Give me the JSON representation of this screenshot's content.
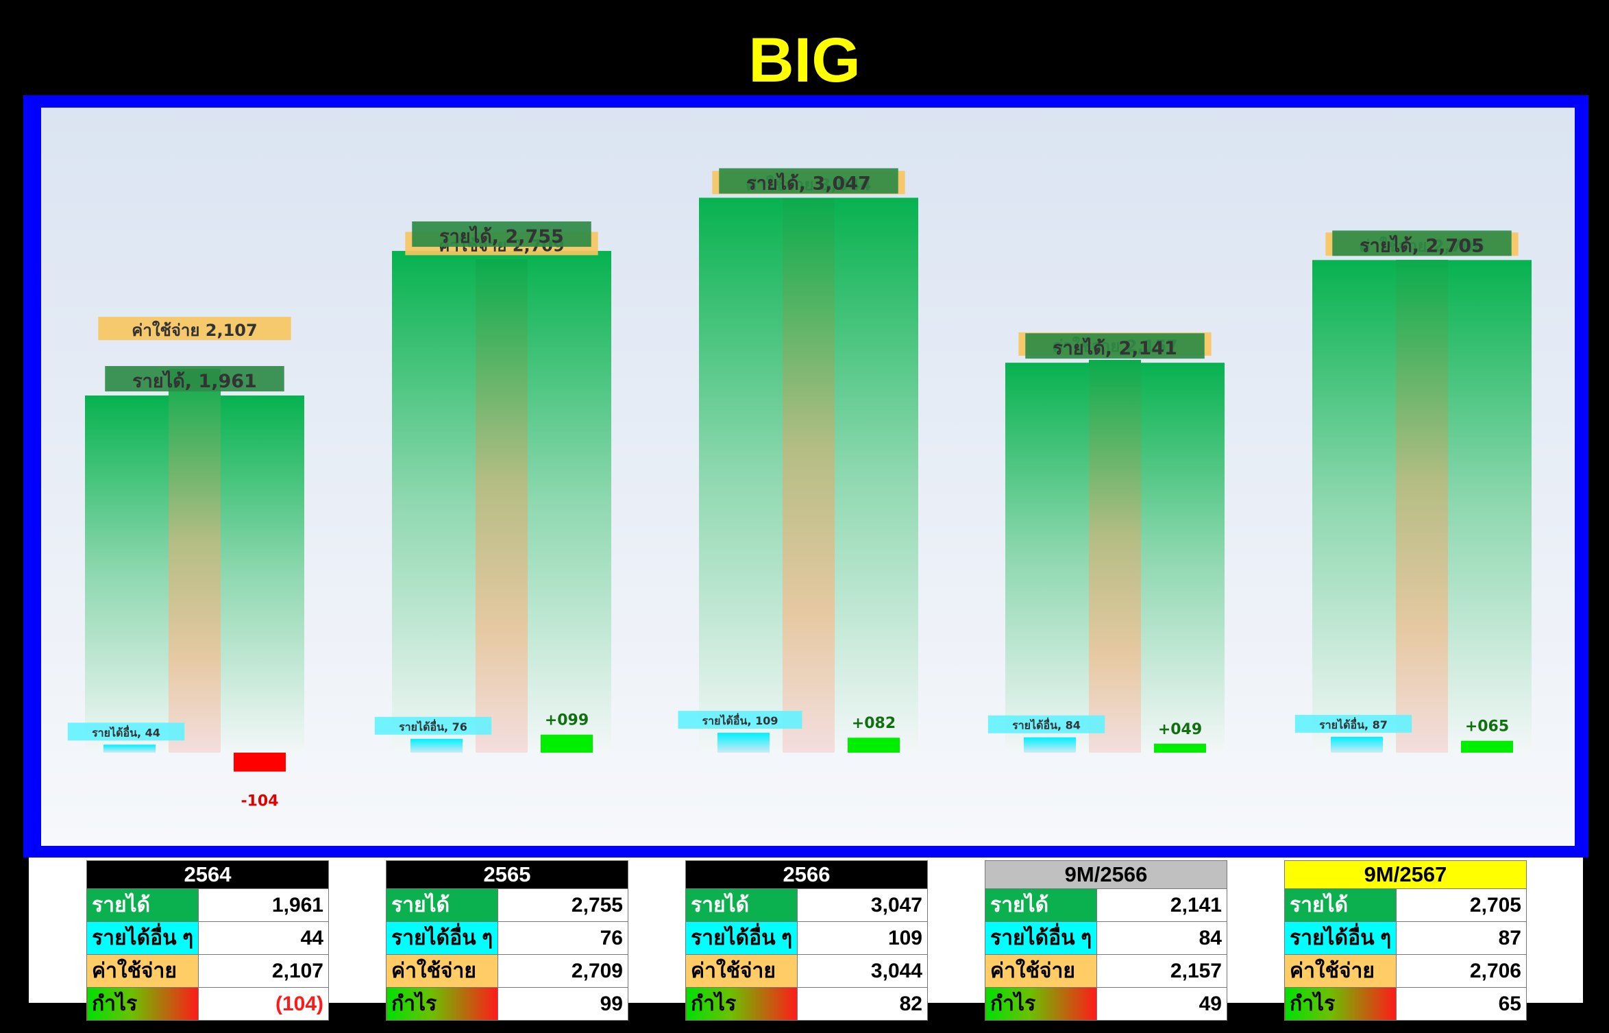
{
  "title": "BIG",
  "colors": {
    "revenue": "#07b24f",
    "other_income": "#00ffff",
    "expense": "#ffcc66",
    "profit_pos": "#00ee00",
    "profit_neg": "#ff0000",
    "frame": "#0000ff",
    "title": "#ffff00"
  },
  "chart_data": {
    "type": "bar",
    "categories": [
      "2564",
      "2565",
      "2566",
      "9M/2566",
      "9M/2567"
    ],
    "series": [
      {
        "name": "รายได้",
        "label_prefix": "รายได้,",
        "values": [
          1961,
          2755,
          3047,
          2141,
          2705
        ]
      },
      {
        "name": "รายได้อื่น ๆ",
        "label_prefix": "รายได้อื่น,",
        "values": [
          44,
          76,
          109,
          84,
          87
        ]
      },
      {
        "name": "ค่าใช้จ่าย",
        "label_prefix": "ค่าใช้จ่าย",
        "values": [
          2107,
          2709,
          3044,
          2157,
          2706
        ]
      },
      {
        "name": "กำไร",
        "values": [
          -104,
          99,
          82,
          49,
          65
        ],
        "labels": [
          "-104",
          "+099",
          "+082",
          "+049",
          "+065"
        ]
      }
    ],
    "ylim": [
      -250,
      3300
    ],
    "grid": false,
    "legend": "none"
  },
  "tables": [
    {
      "header": "2564",
      "header_bg": "#000000",
      "header_fg": "#ffffff",
      "rows": [
        {
          "label": "รายได้",
          "value": "1,961"
        },
        {
          "label": "รายได้อื่น ๆ",
          "value": "44"
        },
        {
          "label": "ค่าใช้จ่าย",
          "value": "2,107"
        },
        {
          "label": "กำไร",
          "value": "(104)",
          "negative": true
        }
      ]
    },
    {
      "header": "2565",
      "header_bg": "#000000",
      "header_fg": "#ffffff",
      "rows": [
        {
          "label": "รายได้",
          "value": "2,755"
        },
        {
          "label": "รายได้อื่น ๆ",
          "value": "76"
        },
        {
          "label": "ค่าใช้จ่าย",
          "value": "2,709"
        },
        {
          "label": "กำไร",
          "value": "99"
        }
      ]
    },
    {
      "header": "2566",
      "header_bg": "#000000",
      "header_fg": "#ffffff",
      "rows": [
        {
          "label": "รายได้",
          "value": "3,047"
        },
        {
          "label": "รายได้อื่น ๆ",
          "value": "109"
        },
        {
          "label": "ค่าใช้จ่าย",
          "value": "3,044"
        },
        {
          "label": "กำไร",
          "value": "82"
        }
      ]
    },
    {
      "header": "9M/2566",
      "header_bg": "#c0c0c0",
      "header_fg": "#000000",
      "rows": [
        {
          "label": "รายได้",
          "value": "2,141"
        },
        {
          "label": "รายได้อื่น ๆ",
          "value": "84"
        },
        {
          "label": "ค่าใช้จ่าย",
          "value": "2,157"
        },
        {
          "label": "กำไร",
          "value": "49"
        }
      ]
    },
    {
      "header": "9M/2567",
      "header_bg": "#ffff00",
      "header_fg": "#000000",
      "rows": [
        {
          "label": "รายได้",
          "value": "2,705"
        },
        {
          "label": "รายได้อื่น ๆ",
          "value": "87"
        },
        {
          "label": "ค่าใช้จ่าย",
          "value": "2,706"
        },
        {
          "label": "กำไร",
          "value": "65"
        }
      ]
    }
  ]
}
